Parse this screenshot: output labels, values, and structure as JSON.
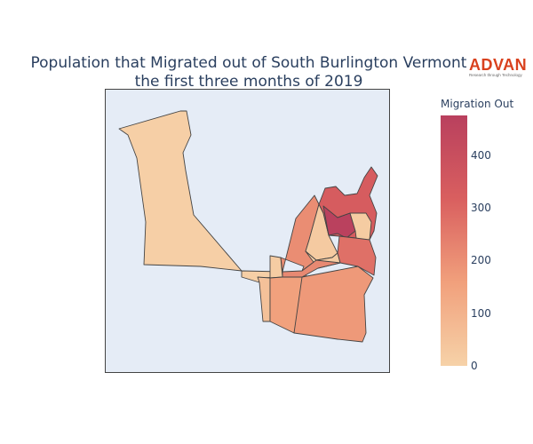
{
  "title": {
    "line1": "Population that Migrated out of South Burlington Vermont",
    "line2": "the first three months of 2019"
  },
  "logo": {
    "name": "ADVAN",
    "tagline": "Research through Technology"
  },
  "map": {
    "type": "choropleth",
    "colorscale": [
      "#f6d2a8",
      "#f1a07c",
      "#d95f5f",
      "#b9405e"
    ],
    "border_color": "#444444",
    "background": "#e5ecf6",
    "regions": [
      {
        "name": "west-large",
        "value": 8
      },
      {
        "name": "neck",
        "value": 8
      },
      {
        "name": "mid-west-strip",
        "value": 55
      },
      {
        "name": "mid-center-small",
        "value": 18
      },
      {
        "name": "south-west",
        "value": 155
      },
      {
        "name": "south-east-large",
        "value": 175
      },
      {
        "name": "center-upper-left",
        "value": 205
      },
      {
        "name": "center-upper-pale",
        "value": 25
      },
      {
        "name": "center-small-pale",
        "value": 18
      },
      {
        "name": "north-ne",
        "value": 330
      },
      {
        "name": "dark-top",
        "value": 470
      },
      {
        "name": "ne-pale",
        "value": 20
      },
      {
        "name": "east-mid",
        "value": 275
      },
      {
        "name": "small-center-bar",
        "value": 215
      }
    ]
  },
  "colorbar": {
    "title": "Migration Out",
    "min": 0,
    "max": 475,
    "ticks": [
      "0",
      "100",
      "200",
      "300",
      "400"
    ]
  }
}
